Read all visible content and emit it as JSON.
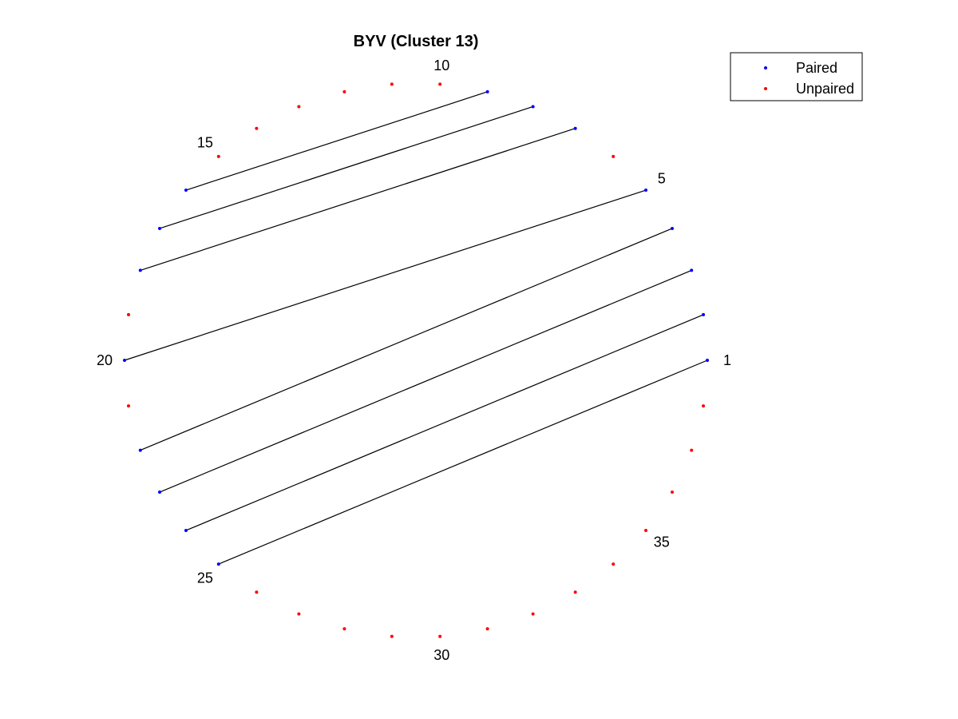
{
  "chart_data": {
    "type": "arc-diagram",
    "title": "BYV (Cluster 13)",
    "n_positions": 38,
    "labeled_positions": [
      1,
      5,
      10,
      15,
      20,
      25,
      30,
      35
    ],
    "pairs": [
      [
        1,
        25
      ],
      [
        2,
        24
      ],
      [
        3,
        23
      ],
      [
        4,
        22
      ],
      [
        5,
        20
      ],
      [
        7,
        18
      ],
      [
        8,
        17
      ],
      [
        9,
        16
      ]
    ],
    "paired_positions": [
      1,
      2,
      3,
      4,
      5,
      7,
      8,
      9,
      16,
      17,
      18,
      20,
      22,
      23,
      24,
      25
    ],
    "unpaired_positions": [
      6,
      10,
      11,
      12,
      13,
      14,
      15,
      19,
      21,
      26,
      27,
      28,
      29,
      30,
      31,
      32,
      33,
      34,
      35,
      36,
      37,
      38
    ],
    "legend": {
      "placement": "top-right",
      "entries": [
        {
          "label": "Paired",
          "color": "#0000ff"
        },
        {
          "label": "Unpaired",
          "color": "#ff0000"
        }
      ]
    },
    "colors": {
      "paired": "#0000ff",
      "unpaired": "#ff0000",
      "line": "#000000"
    },
    "grid": false,
    "axes_visible": false
  }
}
